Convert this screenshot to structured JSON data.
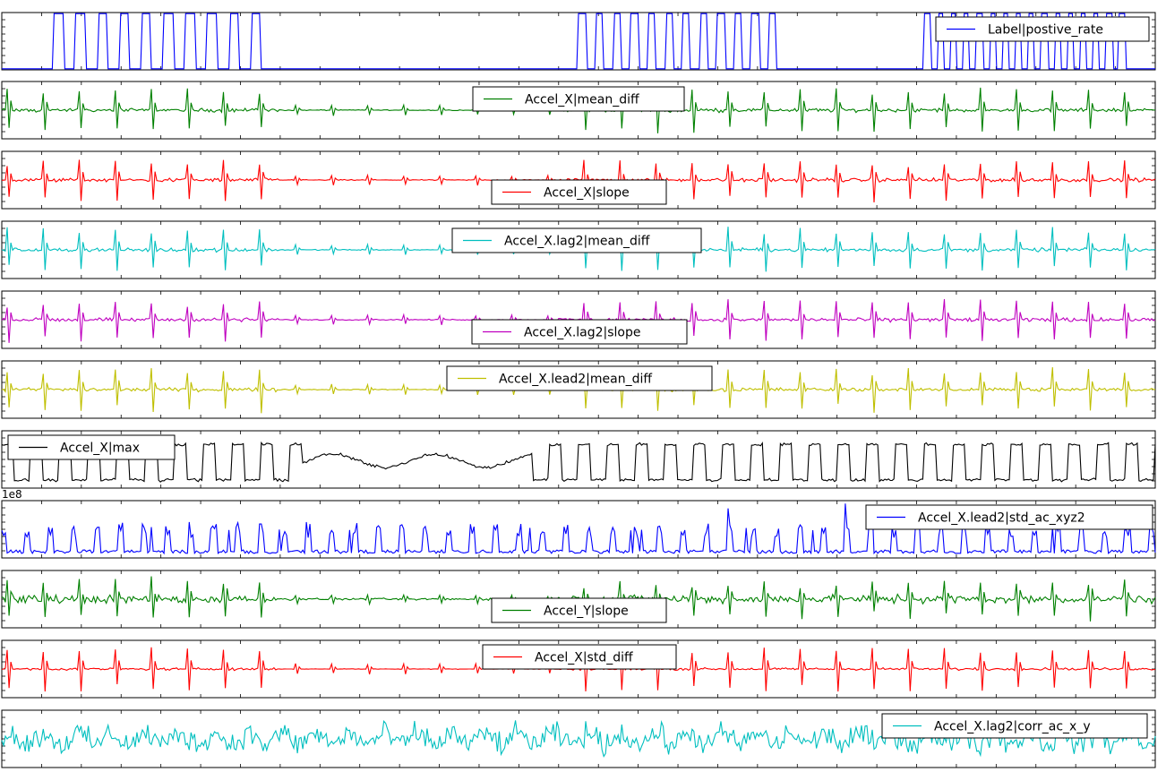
{
  "chart_data": [
    {
      "type": "line",
      "series": [
        {
          "name": "Label|postive_rate",
          "color": "#0000ff"
        }
      ],
      "legend": "top-right",
      "grid": false
    },
    {
      "type": "line",
      "series": [
        {
          "name": "Accel_X|mean_diff",
          "color": "#008000"
        }
      ],
      "legend": "top-center",
      "grid": false
    },
    {
      "type": "line",
      "series": [
        {
          "name": "Accel_X|slope",
          "color": "#ff0000"
        }
      ],
      "legend": "bottom-center",
      "grid": false
    },
    {
      "type": "line",
      "series": [
        {
          "name": "Accel_X.lag2|mean_diff",
          "color": "#00bfbf"
        }
      ],
      "legend": "top-center",
      "grid": false
    },
    {
      "type": "line",
      "series": [
        {
          "name": "Accel_X.lag2|slope",
          "color": "#bf00bf"
        }
      ],
      "legend": "bottom-center",
      "grid": false
    },
    {
      "type": "line",
      "series": [
        {
          "name": "Accel_X.lead2|mean_diff",
          "color": "#bfbf00"
        }
      ],
      "legend": "top-center",
      "grid": false
    },
    {
      "type": "line",
      "series": [
        {
          "name": "Accel_X|max",
          "color": "#000000"
        }
      ],
      "legend": "top-left",
      "grid": false
    },
    {
      "type": "line",
      "series": [
        {
          "name": "Accel_X.lead2|std_ac_xyz2",
          "color": "#0000ff"
        }
      ],
      "legend": "top-right",
      "grid": false,
      "y_offset_label": "1e8"
    },
    {
      "type": "line",
      "series": [
        {
          "name": "Accel_Y|slope",
          "color": "#008000"
        }
      ],
      "legend": "bottom-center",
      "grid": false
    },
    {
      "type": "line",
      "series": [
        {
          "name": "Accel_X|std_diff",
          "color": "#ff0000"
        }
      ],
      "legend": "top-center",
      "grid": false
    },
    {
      "type": "line",
      "series": [
        {
          "name": "Accel_X.lag2|corr_ac_x_y",
          "color": "#00bfbf"
        }
      ],
      "legend": "top-right",
      "grid": false
    }
  ]
}
